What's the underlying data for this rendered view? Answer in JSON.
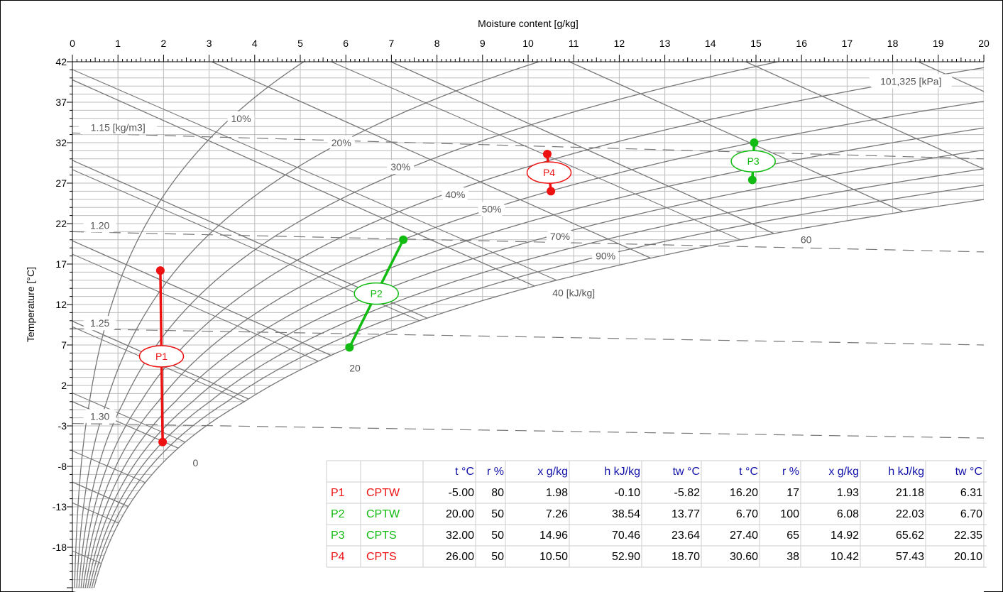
{
  "chart_data": {
    "type": "psychrometric",
    "x_axis": {
      "label": "Moisture content [g/kg]",
      "range": [
        0,
        20
      ],
      "ticks": [
        "0",
        "1",
        "2",
        "3",
        "4",
        "5",
        "6",
        "7",
        "8",
        "9",
        "10",
        "11",
        "12",
        "13",
        "14",
        "15",
        "16",
        "17",
        "18",
        "19",
        "20"
      ]
    },
    "y_axis": {
      "label": "Temperature [°C]",
      "range": [
        -23,
        42
      ],
      "ticks": [
        "42",
        "37",
        "32",
        "27",
        "22",
        "17",
        "12",
        "7",
        "2",
        "-3",
        "-8",
        "-13",
        "-18"
      ]
    },
    "pressure_label": "101,325 [kPa]",
    "rh_labels": [
      "10%",
      "20%",
      "30%",
      "40%",
      "50%",
      "70%",
      "90%"
    ],
    "density_labels": [
      "1.15 [kg/m3]",
      "1.20",
      "1.25",
      "1.30"
    ],
    "enthalpy_labels": [
      "0",
      "20",
      "40 [kJ/kg]",
      "60"
    ],
    "processes": [
      {
        "name": "P1",
        "mode": "CPTW",
        "color": "#ee1111",
        "start": {
          "t": -5.0,
          "r": 80,
          "x": 1.98,
          "h": -0.1,
          "tw": -5.82
        },
        "end": {
          "t": 16.2,
          "r": 17,
          "x": 1.93,
          "h": 21.18,
          "tw": 6.31
        }
      },
      {
        "name": "P2",
        "mode": "CPTW",
        "color": "#11bb11",
        "start": {
          "t": 20.0,
          "r": 50,
          "x": 7.26,
          "h": 38.54,
          "tw": 13.77
        },
        "end": {
          "t": 6.7,
          "r": 100,
          "x": 6.08,
          "h": 22.03,
          "tw": 6.7
        }
      },
      {
        "name": "P3",
        "mode": "CPTS",
        "color": "#11bb11",
        "start": {
          "t": 32.0,
          "r": 50,
          "x": 14.96,
          "h": 70.46,
          "tw": 23.64
        },
        "end": {
          "t": 27.4,
          "r": 65,
          "x": 14.92,
          "h": 65.62,
          "tw": 22.35
        }
      },
      {
        "name": "P4",
        "mode": "CPTS",
        "color": "#ee1111",
        "start": {
          "t": 26.0,
          "r": 50,
          "x": 10.5,
          "h": 52.9,
          "tw": 18.7
        },
        "end": {
          "t": 30.6,
          "r": 38,
          "x": 10.42,
          "h": 57.43,
          "tw": 20.1
        }
      }
    ]
  },
  "table": {
    "headers": [
      "t °C",
      "r %",
      "x g/kg",
      "h kJ/kg",
      "tw °C",
      "t °C",
      "r %",
      "x g/kg",
      "h kJ/kg",
      "tw °C"
    ],
    "rows": [
      {
        "name": "P1",
        "mode": "CPTW",
        "color": "#ee1111",
        "cells": [
          "-5.00",
          "80",
          "1.98",
          "-0.10",
          "-5.82",
          "16.20",
          "17",
          "1.93",
          "21.18",
          "6.31"
        ]
      },
      {
        "name": "P2",
        "mode": "CPTW",
        "color": "#11bb11",
        "cells": [
          "20.00",
          "50",
          "7.26",
          "38.54",
          "13.77",
          "6.70",
          "100",
          "6.08",
          "22.03",
          "6.70"
        ]
      },
      {
        "name": "P3",
        "mode": "CPTS",
        "color": "#11bb11",
        "cells": [
          "32.00",
          "50",
          "14.96",
          "70.46",
          "23.64",
          "27.40",
          "65",
          "14.92",
          "65.62",
          "22.35"
        ]
      },
      {
        "name": "P4",
        "mode": "CPTS",
        "color": "#ee1111",
        "cells": [
          "26.00",
          "50",
          "10.50",
          "52.90",
          "18.70",
          "30.60",
          "38",
          "10.42",
          "57.43",
          "20.10"
        ]
      }
    ]
  },
  "colors": {
    "grid": "#bbbbbb",
    "curves": "#777777",
    "header": "#1111aa"
  }
}
